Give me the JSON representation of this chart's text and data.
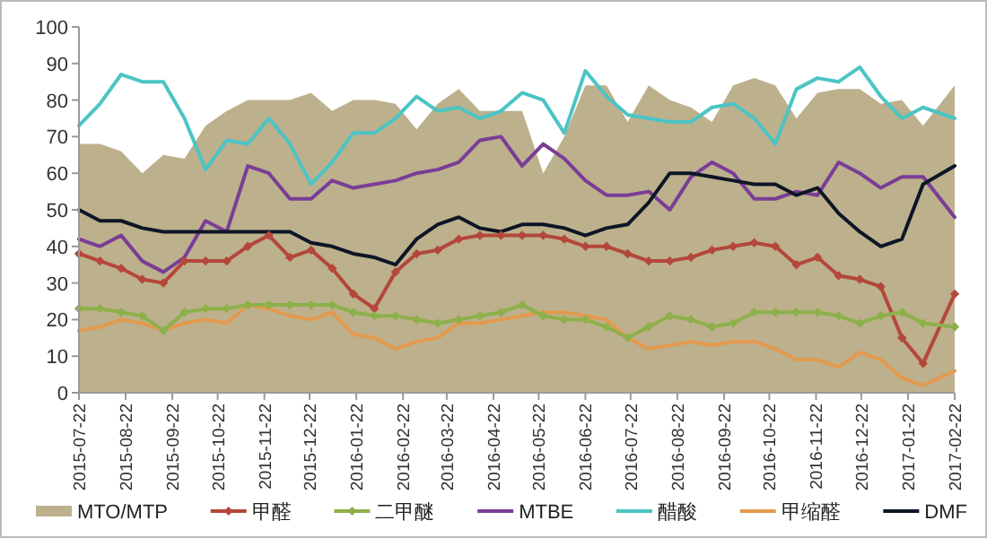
{
  "chart_data": {
    "type": "line",
    "x": [
      "2015-07-22",
      "2015-08-05",
      "2015-08-19",
      "2015-09-02",
      "2015-09-16",
      "2015-09-30",
      "2015-10-14",
      "2015-10-28",
      "2015-11-11",
      "2015-11-25",
      "2015-12-09",
      "2015-12-23",
      "2016-01-06",
      "2016-01-20",
      "2016-02-03",
      "2016-02-17",
      "2016-03-02",
      "2016-03-16",
      "2016-03-30",
      "2016-04-13",
      "2016-04-27",
      "2016-05-11",
      "2016-05-25",
      "2016-06-08",
      "2016-06-22",
      "2016-07-06",
      "2016-07-20",
      "2016-08-03",
      "2016-08-17",
      "2016-08-31",
      "2016-09-14",
      "2016-09-28",
      "2016-10-12",
      "2016-10-26",
      "2016-11-09",
      "2016-11-23",
      "2016-12-07",
      "2016-12-21",
      "2017-01-04",
      "2017-01-18",
      "2017-02-01",
      "2017-02-22"
    ],
    "series": [
      {
        "name": "MTO/MTP",
        "type": "area",
        "color": "#bdb08c",
        "values": [
          68,
          68,
          66,
          60,
          65,
          64,
          73,
          77,
          80,
          80,
          80,
          82,
          77,
          80,
          80,
          79,
          72,
          79,
          83,
          77,
          77,
          77,
          60,
          70,
          84,
          84,
          74,
          84,
          80,
          78,
          74,
          84,
          86,
          84,
          75,
          82,
          83,
          83,
          79,
          80,
          73,
          84
        ]
      },
      {
        "name": "甲醛",
        "color": "#b4473a",
        "marker": "diamond",
        "values": [
          38,
          36,
          34,
          31,
          30,
          36,
          36,
          36,
          40,
          43,
          37,
          39,
          34,
          27,
          23,
          33,
          38,
          39,
          42,
          43,
          43,
          43,
          43,
          42,
          40,
          40,
          38,
          36,
          36,
          37,
          39,
          40,
          41,
          40,
          35,
          37,
          32,
          31,
          29,
          15,
          8,
          27
        ]
      },
      {
        "name": "二甲醚",
        "color": "#8db04a",
        "marker": "diamond",
        "values": [
          23,
          23,
          22,
          21,
          17,
          22,
          23,
          23,
          24,
          24,
          24,
          24,
          24,
          22,
          21,
          21,
          20,
          19,
          20,
          21,
          22,
          24,
          21,
          20,
          20,
          18,
          15,
          18,
          21,
          20,
          18,
          19,
          22,
          22,
          22,
          22,
          21,
          19,
          21,
          22,
          19,
          18
        ]
      },
      {
        "name": "MTBE",
        "color": "#7a3d96",
        "values": [
          42,
          40,
          43,
          36,
          33,
          37,
          47,
          44,
          62,
          60,
          53,
          53,
          58,
          56,
          57,
          58,
          60,
          61,
          63,
          69,
          70,
          62,
          68,
          64,
          58,
          54,
          54,
          55,
          50,
          59,
          63,
          60,
          53,
          53,
          55,
          54,
          63,
          60,
          56,
          59,
          59,
          48
        ]
      },
      {
        "name": "醋酸",
        "color": "#4cc4c4",
        "values": [
          73,
          79,
          87,
          85,
          85,
          75,
          61,
          69,
          68,
          75,
          68,
          57,
          63,
          71,
          71,
          75,
          81,
          77,
          78,
          75,
          77,
          82,
          80,
          71,
          88,
          81,
          76,
          75,
          74,
          74,
          78,
          79,
          75,
          68,
          83,
          86,
          85,
          89,
          81,
          75,
          78,
          75
        ]
      },
      {
        "name": "甲缩醛",
        "color": "#e39a4e",
        "values": [
          17,
          18,
          20,
          19,
          17,
          19,
          20,
          19,
          24,
          23,
          21,
          20,
          22,
          16,
          15,
          12,
          14,
          15,
          19,
          19,
          20,
          21,
          22,
          22,
          21,
          20,
          15,
          12,
          13,
          14,
          13,
          14,
          14,
          12,
          9,
          9,
          7,
          11,
          9,
          4,
          2,
          6
        ]
      },
      {
        "name": "DMF",
        "color": "#0e1626",
        "values": [
          50,
          47,
          47,
          45,
          44,
          44,
          44,
          44,
          44,
          44,
          44,
          41,
          40,
          38,
          37,
          35,
          42,
          46,
          48,
          45,
          44,
          46,
          46,
          45,
          43,
          45,
          46,
          52,
          60,
          60,
          59,
          58,
          57,
          57,
          54,
          56,
          49,
          44,
          40,
          42,
          57,
          62
        ]
      }
    ],
    "xlim": [
      "2015-07-22",
      "2017-02-22"
    ],
    "xticks": [
      "2015-07-22",
      "2015-08-22",
      "2015-09-22",
      "2015-10-22",
      "2015-11-22",
      "2015-12-22",
      "2016-01-22",
      "2016-02-22",
      "2016-03-22",
      "2016-04-22",
      "2016-05-22",
      "2016-06-22",
      "2016-07-22",
      "2016-08-22",
      "2016-09-22",
      "2016-10-22",
      "2016-11-22",
      "2016-12-22",
      "2017-01-22",
      "2017-02-22"
    ],
    "ylim": [
      0,
      100
    ],
    "yticks": [
      0,
      10,
      20,
      30,
      40,
      50,
      60,
      70,
      80,
      90,
      100
    ],
    "grid": false,
    "legend": "bottom",
    "line_style": "solid"
  }
}
